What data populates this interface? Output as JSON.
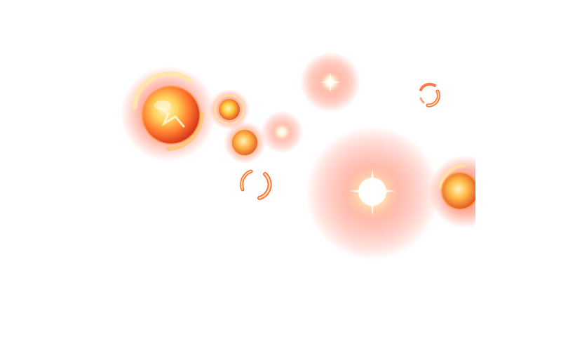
{
  "canvas": {
    "background": "#ffffff"
  },
  "palette": {
    "glow_outer": "#ff6a4d",
    "glow_mid": "#ff8a57",
    "core_hot": "#fff6c8",
    "core_warm": "#ffd25a",
    "ember": "#ff5a2a",
    "deep": "#d83a1c"
  },
  "effects": [
    {
      "kind": "fire-orb",
      "icon": "large-fire-orb-icon"
    },
    {
      "kind": "fire-orb",
      "icon": "small-fire-orb-icon"
    },
    {
      "kind": "fire-orb",
      "icon": "medium-fire-orb-icon"
    },
    {
      "kind": "glow-sparkle",
      "icon": "small-glow-sparkle-icon"
    },
    {
      "kind": "glow-sparkle",
      "icon": "top-glow-sparkle-icon"
    },
    {
      "kind": "crescent-ring",
      "icon": "small-crescent-ring-icon"
    },
    {
      "kind": "crescent-ring",
      "icon": "lower-crescent-ring-icon"
    },
    {
      "kind": "glow-burst",
      "icon": "large-glow-burst-icon"
    },
    {
      "kind": "fire-orb",
      "icon": "edge-fire-orb-icon"
    }
  ]
}
